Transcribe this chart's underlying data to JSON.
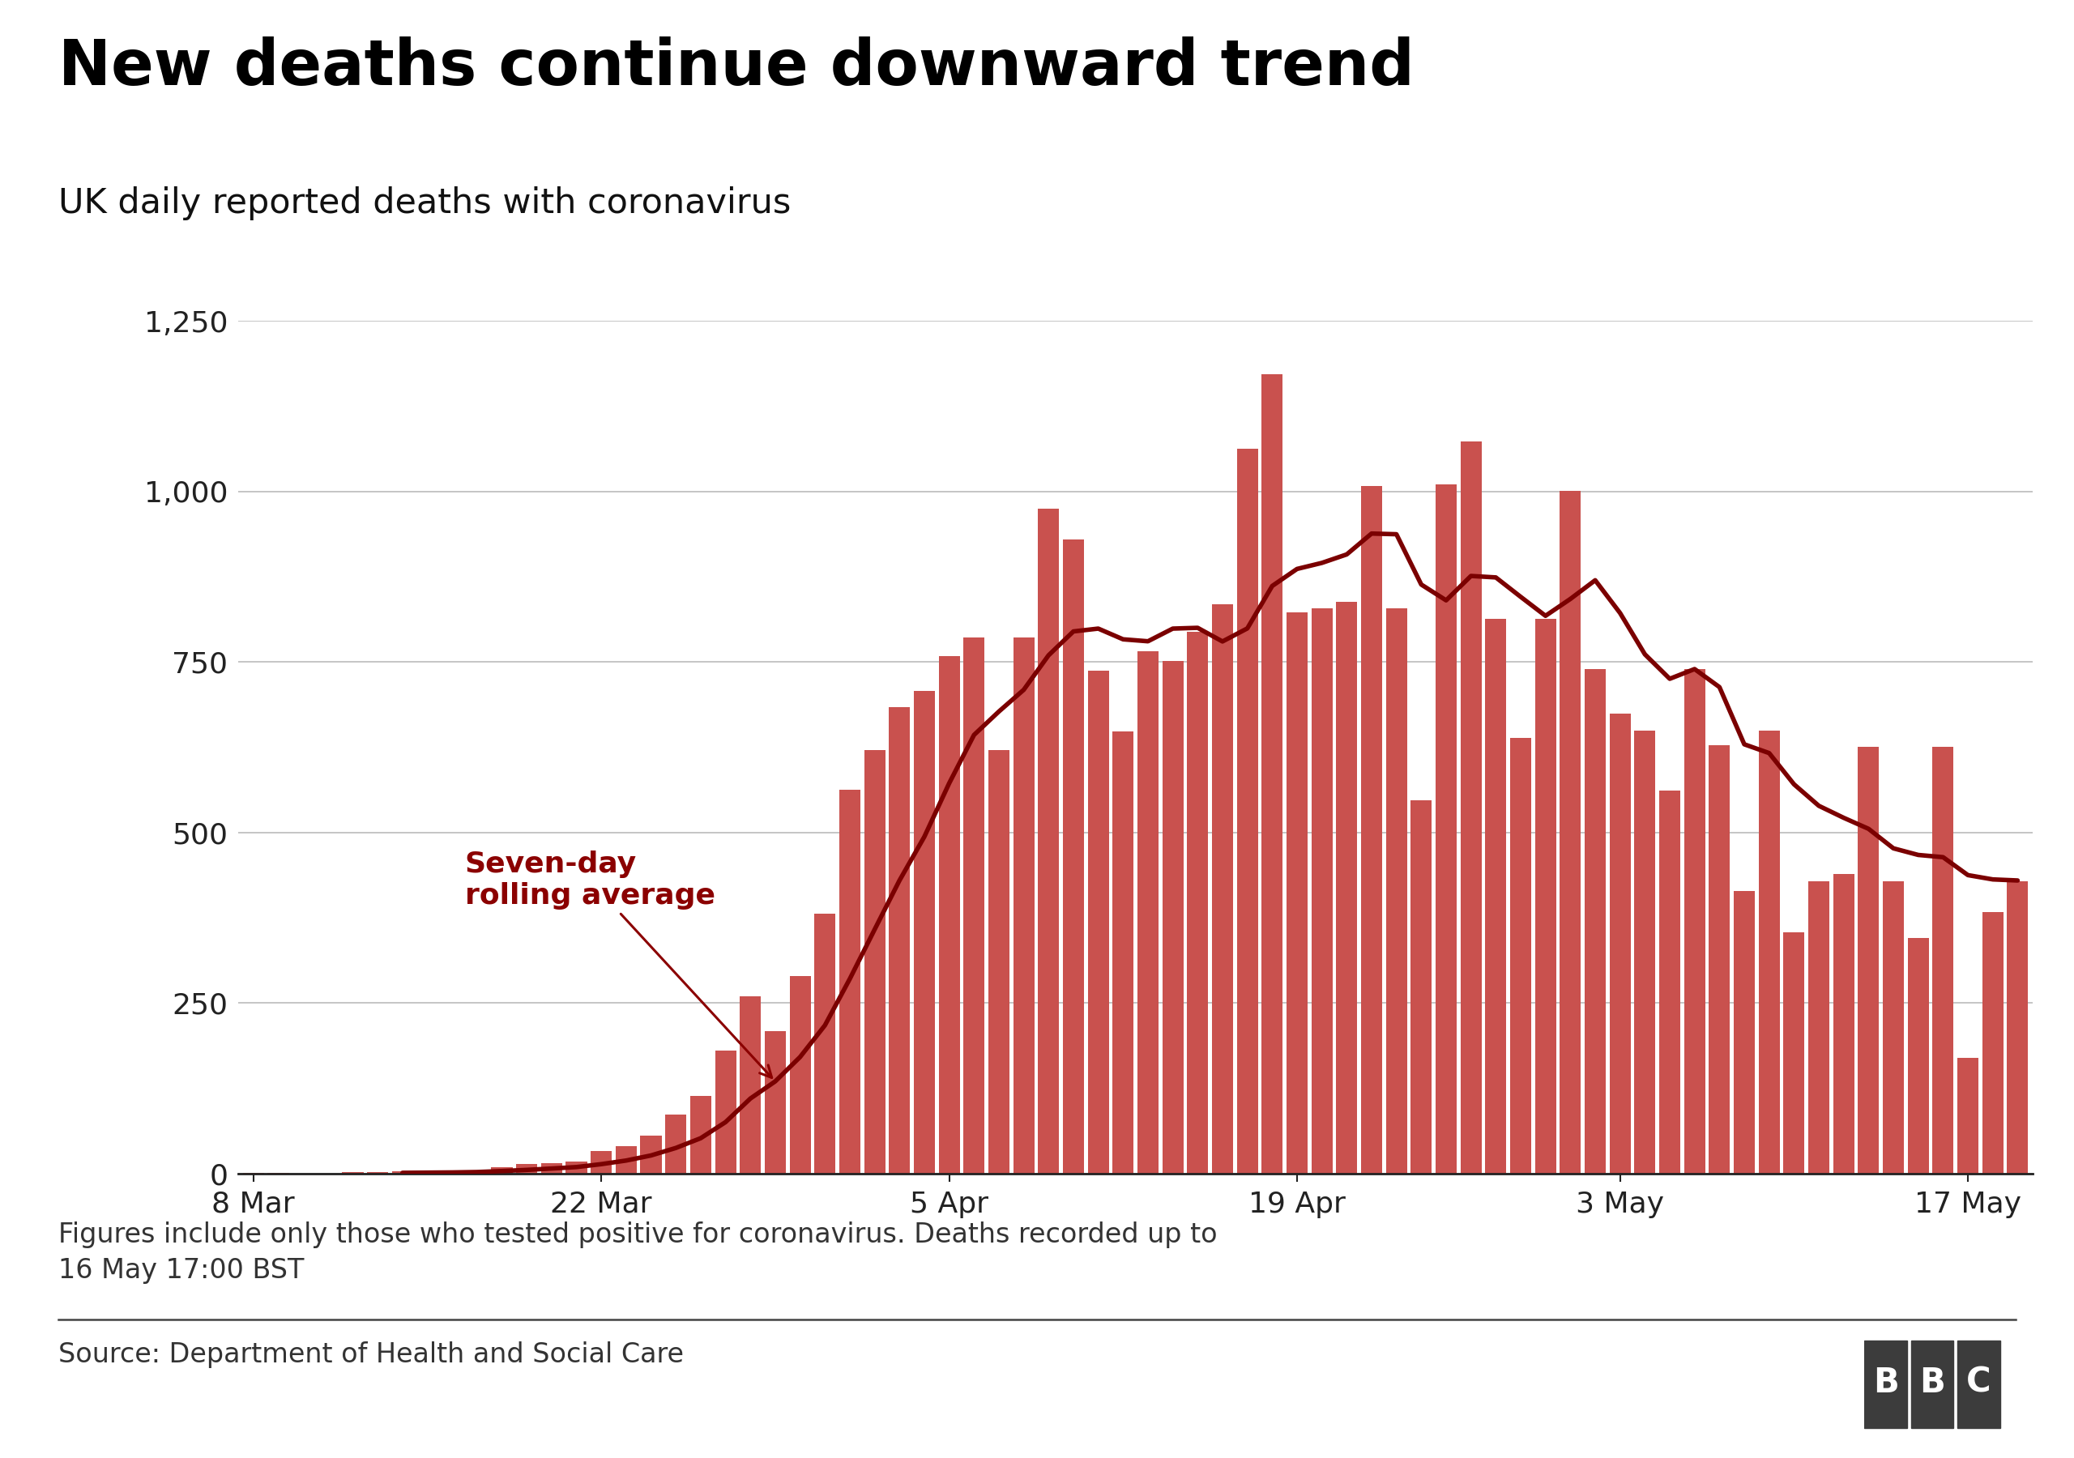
{
  "title": "New deaths continue downward trend",
  "subtitle": "UK daily reported deaths with coronavirus",
  "footnote": "Figures include only those who tested positive for coronavirus. Deaths recorded up to\n16 May 17:00 BST",
  "source": "Source: Department of Health and Social Care",
  "bar_color": "#c9514e",
  "line_color": "#7b0000",
  "background_color": "#ffffff",
  "ylim": [
    0,
    1250
  ],
  "yticks": [
    0,
    250,
    500,
    750,
    1000,
    1250
  ],
  "ytick_labels": [
    "0",
    "250",
    "500",
    "750",
    "1,000",
    "1,250"
  ],
  "annotation_text": "Seven-day\nrolling average",
  "annotation_color": "#8b0000",
  "daily_deaths": [
    1,
    1,
    0,
    0,
    2,
    2,
    3,
    3,
    3,
    4,
    10,
    14,
    16,
    18,
    33,
    40,
    56,
    87,
    114,
    181,
    260,
    209,
    290,
    381,
    563,
    621,
    684,
    708,
    758,
    786,
    621,
    786,
    975,
    929,
    737,
    648,
    766,
    751,
    794,
    835,
    1063,
    1172,
    823,
    828,
    838,
    1008,
    828,
    547,
    1010,
    1073,
    813,
    639,
    813,
    1001,
    739,
    674,
    649,
    562,
    739,
    628,
    414,
    649,
    354,
    428,
    439,
    626,
    428,
    346,
    626,
    170,
    384,
    428
  ],
  "xtick_labels": [
    "8 Mar",
    "22 Mar",
    "5 Apr",
    "19 Apr",
    "3 May",
    "17 May"
  ],
  "xtick_positions": [
    0,
    14,
    28,
    42,
    55,
    69
  ]
}
